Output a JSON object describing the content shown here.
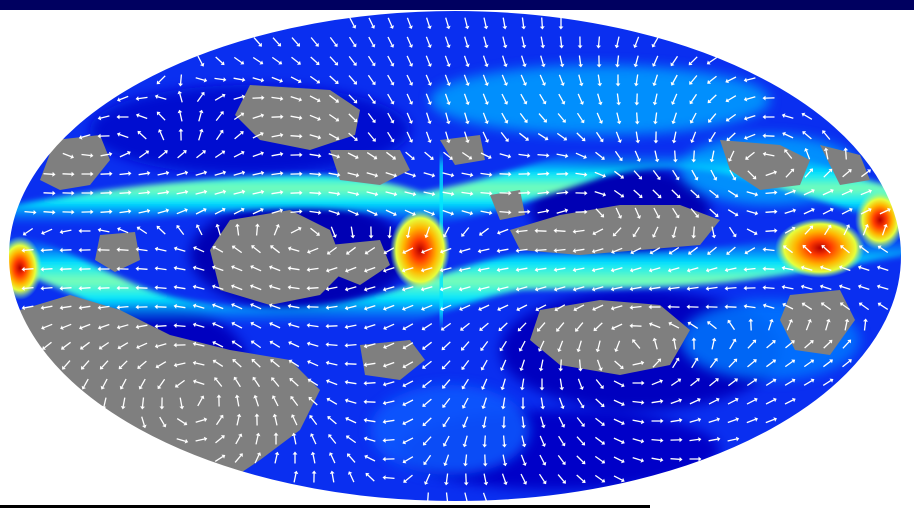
{
  "map": {
    "projection": "mollweide",
    "field": "flow-velocity-magnitude",
    "colormap": [
      "#00007a",
      "#0000c8",
      "#0a3cff",
      "#00a0ff",
      "#00e6ff",
      "#7dffb4",
      "#e6ff3c",
      "#ffb400",
      "#ff3c00",
      "#b40000"
    ],
    "land_color": "#7f7f7f",
    "arrow_color": "#ffffff",
    "frame_color": "#000060",
    "hotspots": [
      {
        "name": "west-edge-hotspot",
        "intensity": 1.0
      },
      {
        "name": "central-hotspot",
        "intensity": 1.0
      },
      {
        "name": "east-hotspot",
        "intensity": 0.95
      }
    ]
  }
}
